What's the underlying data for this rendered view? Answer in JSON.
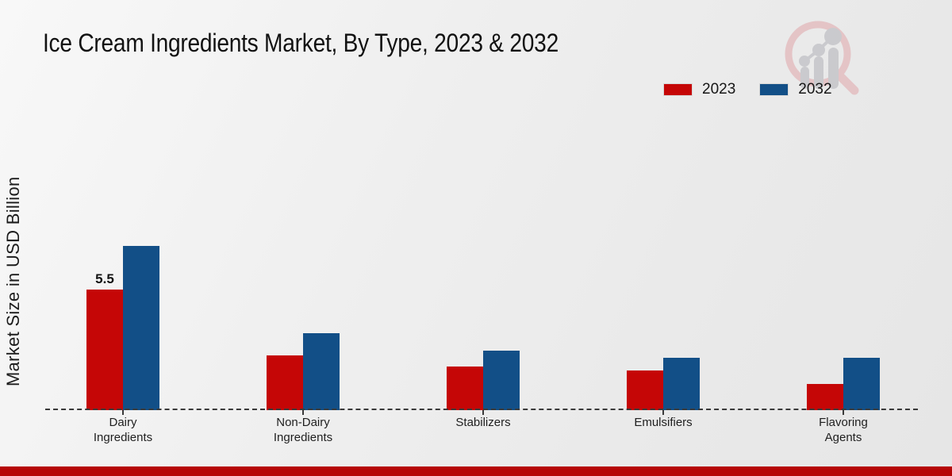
{
  "chart_data": {
    "type": "bar",
    "title": "Ice Cream Ingredients Market, By Type, 2023 & 2032",
    "ylabel": "Market Size in USD Billion",
    "xlabel": "",
    "categories": [
      "Dairy\nIngredients",
      "Non-Dairy\nIngredients",
      "Stabilizers",
      "Emulsifiers",
      "Flavoring\nAgents"
    ],
    "series": [
      {
        "name": "2023",
        "color": "#c50606",
        "values": [
          5.5,
          2.5,
          2.0,
          1.8,
          1.2
        ],
        "data_labels": [
          "5.5",
          "",
          "",
          "",
          ""
        ]
      },
      {
        "name": "2032",
        "color": "#124f87",
        "values": [
          7.5,
          3.5,
          2.7,
          2.4,
          2.4
        ],
        "data_labels": [
          "",
          "",
          "",
          "",
          ""
        ]
      }
    ],
    "ylim": [
      0,
      8
    ],
    "y_axis_ticks_visible": false,
    "grid": false,
    "legend_position": "top-right",
    "baseline_style": "dashed"
  },
  "legend": {
    "items": [
      {
        "label": "2023",
        "color": "#c50606"
      },
      {
        "label": "2032",
        "color": "#124f87"
      }
    ]
  },
  "watermark": {
    "name": "market-research-magnifier-logo",
    "ring_color": "#e4c0c3",
    "bars_color": "#c7c7cb"
  },
  "footer": {
    "color": "#b60606"
  }
}
